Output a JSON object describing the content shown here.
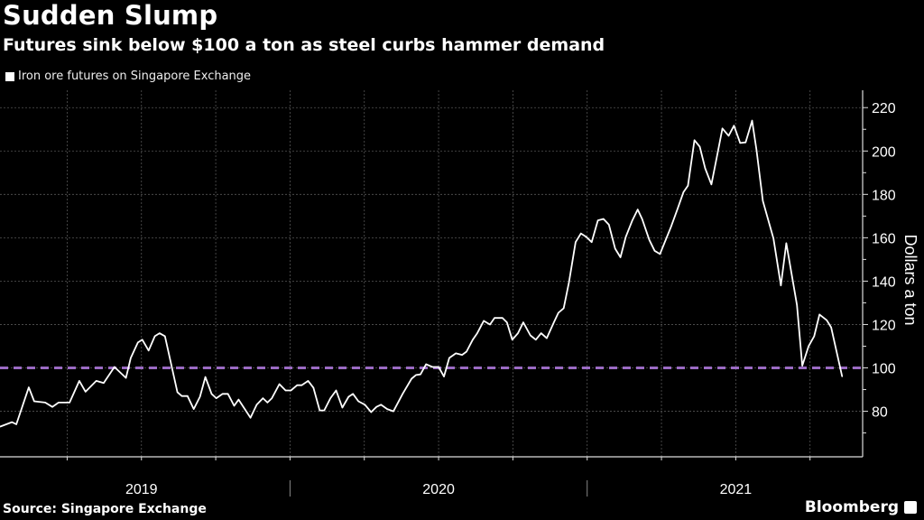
{
  "header": {
    "title": "Sudden Slump",
    "subtitle": "Futures sink below $100 a ton as steel curbs hammer demand"
  },
  "footer": {
    "source": "Source: Singapore Exchange",
    "brand": "Bloomberg"
  },
  "chart_data": {
    "type": "line",
    "title": "Sudden Slump",
    "subtitle": "Futures sink below $100 a ton as steel curbs hammer demand",
    "xlabel": "",
    "ylabel": "Dollars a ton",
    "x_ticks": [
      "2019",
      "2020",
      "2021"
    ],
    "y_ticks": [
      80,
      100,
      120,
      140,
      160,
      180,
      200,
      220
    ],
    "xlim": [
      2019.024,
      2021.927
    ],
    "ylim": [
      59,
      228
    ],
    "grid": true,
    "legend_position": "top-left",
    "reference_line": {
      "value": 100,
      "color": "#9b6bc4",
      "style": "dashed"
    },
    "colors": {
      "series": "#ffffff",
      "background": "#000000",
      "grid": "#555555"
    },
    "series": [
      {
        "name": "Iron ore futures on Singapore Exchange",
        "x": [
          2019.024,
          2019.064,
          2019.079,
          2019.121,
          2019.139,
          2019.176,
          2019.2,
          2019.221,
          2019.258,
          2019.291,
          2019.312,
          2019.348,
          2019.373,
          2019.409,
          2019.448,
          2019.464,
          2019.488,
          2019.503,
          2019.524,
          2019.545,
          2019.561,
          2019.579,
          2019.621,
          2019.636,
          2019.655,
          2019.676,
          2019.697,
          2019.715,
          2019.736,
          2019.752,
          2019.773,
          2019.791,
          2019.812,
          2019.827,
          2019.867,
          2019.888,
          2019.909,
          2019.924,
          2019.939,
          2019.964,
          2019.985,
          2020.003,
          2020.024,
          2020.039,
          2020.061,
          2020.079,
          2020.1,
          2020.115,
          2020.136,
          2020.155,
          2020.176,
          2020.197,
          2020.212,
          2020.23,
          2020.252,
          2020.273,
          2020.291,
          2020.306,
          2020.327,
          2020.348,
          2020.379,
          2020.409,
          2020.424,
          2020.439,
          2020.458,
          2020.479,
          2020.5,
          2020.518,
          2020.536,
          2020.558,
          2020.579,
          2020.594,
          2020.615,
          2020.63,
          2020.652,
          2020.673,
          2020.688,
          2020.715,
          2020.73,
          2020.748,
          2020.767,
          2020.785,
          2020.809,
          2020.827,
          2020.845,
          2020.864,
          2020.888,
          2020.903,
          2020.921,
          2020.939,
          2020.961,
          2020.979,
          2020.997,
          2021.015,
          2021.036,
          2021.055,
          2021.073,
          2021.094,
          2021.112,
          2021.13,
          2021.152,
          2021.17,
          2021.185,
          2021.209,
          2021.227,
          2021.245,
          2021.282,
          2021.303,
          2021.324,
          2021.339,
          2021.361,
          2021.379,
          2021.397,
          2021.418,
          2021.436,
          2021.455,
          2021.476,
          2021.494,
          2021.515,
          2021.533,
          2021.555,
          2021.57,
          2021.591,
          2021.627,
          2021.652,
          2021.67,
          2021.706,
          2021.724,
          2021.745,
          2021.764,
          2021.782,
          2021.806,
          2021.821,
          2021.858
        ],
        "values": [
          72.9,
          75,
          74,
          91,
          84.6,
          84,
          82,
          84,
          84,
          94,
          89,
          94,
          93,
          100.4,
          95.4,
          104.6,
          111.7,
          113,
          108,
          114.6,
          116,
          114.6,
          88.8,
          87,
          87,
          81,
          86.7,
          95.8,
          88,
          86,
          88,
          88,
          82.5,
          85.4,
          77,
          83,
          86,
          84,
          86,
          92.5,
          89.6,
          89.6,
          92,
          92,
          94,
          90.8,
          80.4,
          80.4,
          86,
          89.6,
          81.7,
          86.7,
          88,
          84.6,
          83,
          79.6,
          82,
          83,
          81,
          80,
          88,
          95,
          96.7,
          97,
          101.7,
          100.4,
          100.4,
          96,
          104.6,
          106.7,
          106,
          107.5,
          113,
          116,
          121.7,
          120,
          123,
          123,
          121,
          113,
          116,
          121,
          115,
          113,
          116,
          113.7,
          121,
          125.4,
          127.5,
          139.6,
          158,
          162,
          160.4,
          158,
          168,
          168.7,
          166,
          155,
          151,
          160.4,
          168,
          173,
          168.7,
          159,
          154,
          152.5,
          165,
          172.9,
          181,
          184,
          205,
          202,
          192,
          184.6,
          197,
          210.4,
          207,
          211.7,
          203.7,
          204,
          214,
          200.4,
          177,
          159.6,
          138,
          157.5,
          129,
          101,
          110,
          114.6,
          124.6,
          122,
          118.7,
          96
        ]
      }
    ]
  }
}
